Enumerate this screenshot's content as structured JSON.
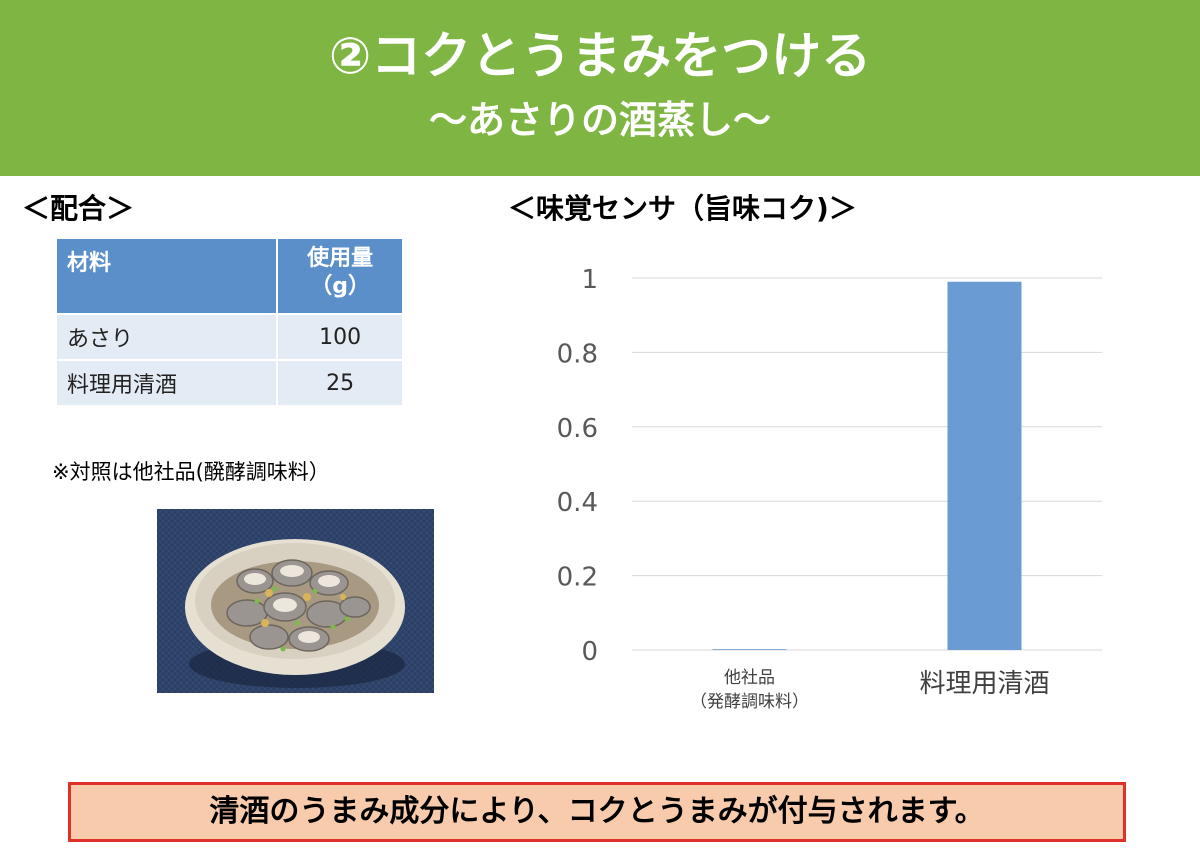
{
  "header": {
    "title": "②コクとうまみをつける",
    "subtitle": "～あさりの酒蒸し～"
  },
  "recipe": {
    "label": "＜配合＞",
    "columns": [
      "材料",
      "使用量",
      "（g）"
    ],
    "rows": [
      {
        "material": "あさり",
        "amount": "100"
      },
      {
        "material": "料理用清酒",
        "amount": "25"
      }
    ],
    "note": "※対照は他社品(醗酵調味料）"
  },
  "chart_label": "＜味覚センサ（旨味コク)＞",
  "chart_data": {
    "type": "bar",
    "categories": [
      "他社品（発酵調味料）",
      "料理用清酒"
    ],
    "category_lines": [
      [
        "他社品",
        "（発酵調味料）"
      ],
      [
        "料理用清酒"
      ]
    ],
    "values": [
      0,
      0.99
    ],
    "ylim": [
      0,
      1
    ],
    "yticks": [
      "0",
      "0.2",
      "0.4",
      "0.6",
      "0.8",
      "1"
    ],
    "grid": true,
    "bar_color": "#6a9bd3",
    "title": "",
    "xlabel": "",
    "ylabel": ""
  },
  "summary": "清酒のうまみ成分により、コクとうまみが付与されます。",
  "colors": {
    "header_bg": "#7eb543",
    "table_header_bg": "#5b8fc9",
    "table_row_bg": "#e3ebf5",
    "summary_bg": "#f8cbad",
    "summary_border": "#e0302a"
  }
}
